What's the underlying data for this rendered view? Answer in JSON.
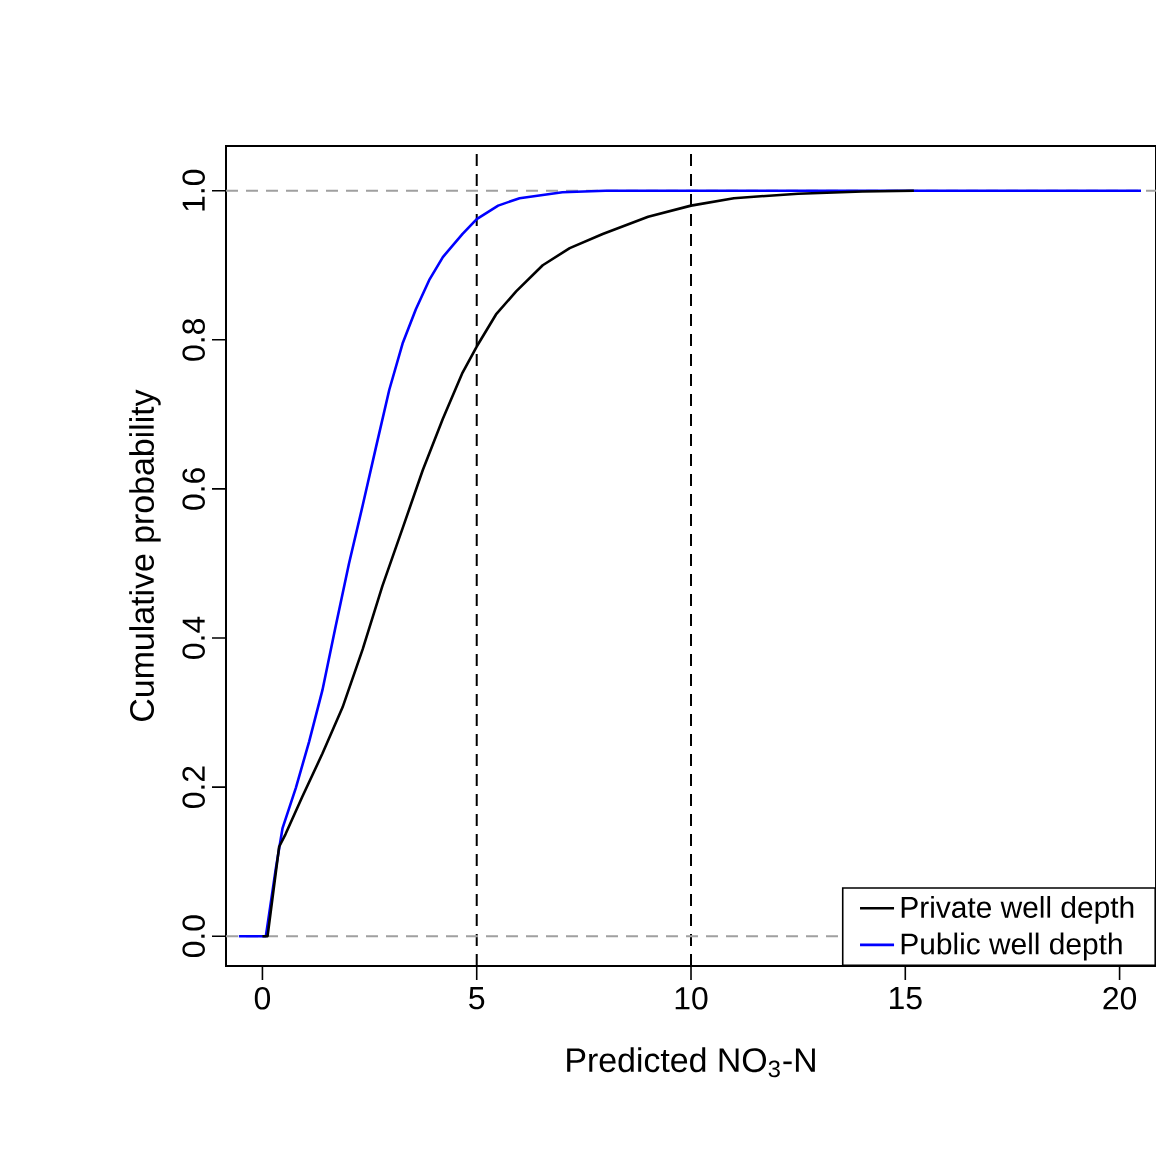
{
  "chart_data": {
    "type": "line",
    "xlabel": "Predicted NO$_{3}$-N",
    "ylabel": "Cumulative probability",
    "xlim": [
      -0.85,
      20.85
    ],
    "ylim": [
      -0.04,
      1.06
    ],
    "xticks": [
      0,
      5,
      10,
      15,
      20
    ],
    "yticks": [
      {
        "value": 0,
        "label": "0.0"
      },
      {
        "value": 0.2,
        "label": "0.2"
      },
      {
        "value": 0.4,
        "label": "0.4"
      },
      {
        "value": 0.6,
        "label": "0.6"
      },
      {
        "value": 0.8,
        "label": "0.8"
      },
      {
        "value": 1,
        "label": "1.0"
      }
    ],
    "grid": false,
    "legend": "bottom right",
    "marker": "none",
    "line_style": "solid",
    "ref_lines": [
      {
        "axis": "x",
        "value": 5,
        "color": "#000000",
        "line_style": "dashed"
      },
      {
        "axis": "x",
        "value": 10,
        "color": "#000000",
        "line_style": "dashed"
      },
      {
        "axis": "y",
        "value": 0,
        "color": "#a0a0a0",
        "line_style": "dashed"
      },
      {
        "axis": "y",
        "value": 1,
        "color": "#a0a0a0",
        "line_style": "dashed"
      }
    ],
    "series": [
      {
        "name": "Private well depth",
        "color": "#000000",
        "x": [
          0,
          0.12,
          0.39,
          0.54,
          0.93,
          1.4,
          1.87,
          2.34,
          2.8,
          3.27,
          3.74,
          4.21,
          4.67,
          5,
          5.45,
          5.92,
          6.54,
          7.17,
          7.94,
          9,
          10,
          11,
          12.5,
          14,
          15.2
        ],
        "values": [
          0,
          0,
          0.12,
          0.137,
          0.187,
          0.245,
          0.307,
          0.385,
          0.47,
          0.547,
          0.625,
          0.694,
          0.756,
          0.791,
          0.834,
          0.865,
          0.9,
          0.923,
          0.942,
          0.965,
          0.98,
          0.99,
          0.996,
          0.999,
          1
        ]
      },
      {
        "name": "Public well depth",
        "color": "#0000ff",
        "x": [
          -0.55,
          0.08,
          0.31,
          0.47,
          0.78,
          1.09,
          1.4,
          1.71,
          2.02,
          2.34,
          2.65,
          2.96,
          3.27,
          3.58,
          3.89,
          4.21,
          4.67,
          5,
          5.5,
          6,
          7,
          8,
          16,
          20.5
        ],
        "values": [
          0,
          0,
          0.09,
          0.145,
          0.199,
          0.261,
          0.33,
          0.416,
          0.5,
          0.578,
          0.656,
          0.733,
          0.795,
          0.841,
          0.88,
          0.911,
          0.942,
          0.962,
          0.98,
          0.99,
          0.998,
          1,
          1,
          1
        ]
      }
    ]
  }
}
